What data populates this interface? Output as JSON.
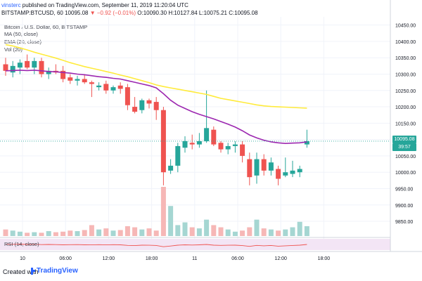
{
  "header": {
    "author": "vinsterc",
    "published_text": "published on TradingView.com, September 11, 2019 11:20:04 UTC",
    "symbol": "BITSTAMP:BTCUSD, 60",
    "last": "10095.08",
    "change_text": "▼ −0.92 (−0.01%)",
    "o_label": "O:",
    "o_value": "10090.30",
    "h_label": "H:",
    "h_value": "10127.84",
    "l_label": "L:",
    "l_value": "10075.21",
    "c_label": "C:",
    "c_value": "10095.08"
  },
  "indicators": {
    "title": "Bitcoin / U.S. Dollar, 60, BITSTAMP",
    "ma": "MA (50, close)",
    "ema": "EMA (20, close)",
    "vol": "Vol (20)",
    "rsi": "RSI (14, close)"
  },
  "price_tag": {
    "price": "10095.08",
    "countdown": "39:57"
  },
  "footer": {
    "created_with": "Created with",
    "brand": "TradingView"
  },
  "colors": {
    "up": "#26a69a",
    "down": "#ef5350",
    "ma": "#ffeb3b",
    "ema": "#9c27b0",
    "vol_up": "#a5d6d2",
    "vol_down": "#f6b7b6",
    "rsi_band": "#f3e5f5",
    "rsi_line": "#ef5350"
  },
  "chart_data": {
    "type": "candlestick",
    "y_axis_ticks": [
      "10450.00",
      "10400.00",
      "10350.00",
      "10300.00",
      "10250.00",
      "10200.00",
      "10150.00",
      "10100.00",
      "10050.00",
      "10000.00",
      "9950.00",
      "9900.00",
      "9850.00"
    ],
    "ylim": [
      9805,
      10475
    ],
    "x_axis_ticks": [
      "10",
      "06:00",
      "12:00",
      "18:00",
      "11",
      "06:00",
      "12:00",
      "18:00"
    ],
    "x_tick_index": [
      0,
      6,
      12,
      18,
      24,
      30,
      36,
      42
    ],
    "candles": [
      {
        "o": 10330,
        "h": 10350,
        "l": 10295,
        "c": 10310
      },
      {
        "o": 10305,
        "h": 10340,
        "l": 10290,
        "c": 10325
      },
      {
        "o": 10320,
        "h": 10345,
        "l": 10300,
        "c": 10335
      },
      {
        "o": 10340,
        "h": 10360,
        "l": 10315,
        "c": 10320
      },
      {
        "o": 10320,
        "h": 10350,
        "l": 10300,
        "c": 10340
      },
      {
        "o": 10340,
        "h": 10350,
        "l": 10290,
        "c": 10300
      },
      {
        "o": 10300,
        "h": 10320,
        "l": 10285,
        "c": 10310
      },
      {
        "o": 10310,
        "h": 10330,
        "l": 10300,
        "c": 10305
      },
      {
        "o": 10310,
        "h": 10325,
        "l": 10275,
        "c": 10285
      },
      {
        "o": 10290,
        "h": 10300,
        "l": 10270,
        "c": 10280
      },
      {
        "o": 10280,
        "h": 10295,
        "l": 10265,
        "c": 10285
      },
      {
        "o": 10285,
        "h": 10300,
        "l": 10270,
        "c": 10275
      },
      {
        "o": 10275,
        "h": 10280,
        "l": 10230,
        "c": 10270
      },
      {
        "o": 10260,
        "h": 10275,
        "l": 10250,
        "c": 10265
      },
      {
        "o": 10270,
        "h": 10280,
        "l": 10240,
        "c": 10250
      },
      {
        "o": 10250,
        "h": 10265,
        "l": 10240,
        "c": 10260
      },
      {
        "o": 10265,
        "h": 10275,
        "l": 10240,
        "c": 10255
      },
      {
        "o": 10260,
        "h": 10270,
        "l": 10190,
        "c": 10205
      },
      {
        "o": 10200,
        "h": 10230,
        "l": 10180,
        "c": 10185
      },
      {
        "o": 10190,
        "h": 10225,
        "l": 10180,
        "c": 10220
      },
      {
        "o": 10220,
        "h": 10225,
        "l": 10195,
        "c": 10210
      },
      {
        "o": 10215,
        "h": 10230,
        "l": 10160,
        "c": 10190
      },
      {
        "o": 10190,
        "h": 10200,
        "l": 9960,
        "c": 10000
      },
      {
        "o": 10005,
        "h": 10040,
        "l": 9995,
        "c": 10020
      },
      {
        "o": 10020,
        "h": 10090,
        "l": 10000,
        "c": 10080
      },
      {
        "o": 10075,
        "h": 10110,
        "l": 10060,
        "c": 10095
      },
      {
        "o": 10090,
        "h": 10115,
        "l": 10070,
        "c": 10085
      },
      {
        "o": 10085,
        "h": 10120,
        "l": 10075,
        "c": 10095
      },
      {
        "o": 10095,
        "h": 10250,
        "l": 10090,
        "c": 10135
      },
      {
        "o": 10130,
        "h": 10140,
        "l": 10080,
        "c": 10085
      },
      {
        "o": 10090,
        "h": 10095,
        "l": 10060,
        "c": 10070
      },
      {
        "o": 10070,
        "h": 10090,
        "l": 10055,
        "c": 10080
      },
      {
        "o": 10080,
        "h": 10095,
        "l": 10060,
        "c": 10085
      },
      {
        "o": 10085,
        "h": 10095,
        "l": 10030,
        "c": 10050
      },
      {
        "o": 10040,
        "h": 10060,
        "l": 9960,
        "c": 9985
      },
      {
        "o": 9990,
        "h": 10060,
        "l": 9965,
        "c": 10040
      },
      {
        "o": 10040,
        "h": 10055,
        "l": 9990,
        "c": 10005
      },
      {
        "o": 10005,
        "h": 10045,
        "l": 9990,
        "c": 10030
      },
      {
        "o": 10010,
        "h": 10020,
        "l": 9960,
        "c": 9980
      },
      {
        "o": 9990,
        "h": 10045,
        "l": 9985,
        "c": 10000
      },
      {
        "o": 9995,
        "h": 10035,
        "l": 9985,
        "c": 10005
      },
      {
        "o": 10000,
        "h": 10020,
        "l": 9985,
        "c": 10010
      },
      {
        "o": 10085,
        "h": 10130,
        "l": 10075,
        "c": 10095
      }
    ],
    "ma_50": [
      10390,
      10386,
      10380,
      10374,
      10367,
      10361,
      10355,
      10349,
      10342,
      10335,
      10329,
      10323,
      10318,
      10313,
      10308,
      10303,
      10297,
      10292,
      10286,
      10280,
      10274,
      10267,
      10262,
      10258,
      10254,
      10250,
      10246,
      10242,
      10238,
      10232,
      10226,
      10222,
      10218,
      10214,
      10210,
      10206,
      10203,
      10201,
      10200,
      10199,
      10198,
      10197,
      10196
    ],
    "ema_20": [
      10310,
      10311,
      10312,
      10311,
      10312,
      10310,
      10308,
      10307,
      10305,
      10303,
      10300,
      10298,
      10295,
      10292,
      10290,
      10287,
      10285,
      10280,
      10275,
      10270,
      10265,
      10258,
      10240,
      10220,
      10205,
      10195,
      10185,
      10177,
      10170,
      10163,
      10155,
      10147,
      10138,
      10127,
      10114,
      10105,
      10098,
      10093,
      10090,
      10088,
      10089,
      10090,
      10093
    ],
    "volume": [
      12,
      10,
      8,
      6,
      7,
      6,
      9,
      7,
      8,
      10,
      9,
      11,
      20,
      12,
      14,
      10,
      11,
      18,
      16,
      12,
      14,
      10,
      90,
      55,
      20,
      25,
      16,
      14,
      30,
      20,
      16,
      12,
      8,
      10,
      16,
      30,
      14,
      12,
      10,
      12,
      16,
      26,
      18
    ],
    "rsi_14": [
      52,
      51,
      53,
      50,
      52,
      49,
      50,
      49,
      47,
      48,
      49,
      47,
      46,
      48,
      46,
      48,
      47,
      42,
      40,
      44,
      43,
      41,
      30,
      36,
      44,
      47,
      45,
      47,
      50,
      44,
      42,
      43,
      44,
      40,
      33,
      42,
      38,
      41,
      35,
      38,
      41,
      44,
      50
    ]
  }
}
